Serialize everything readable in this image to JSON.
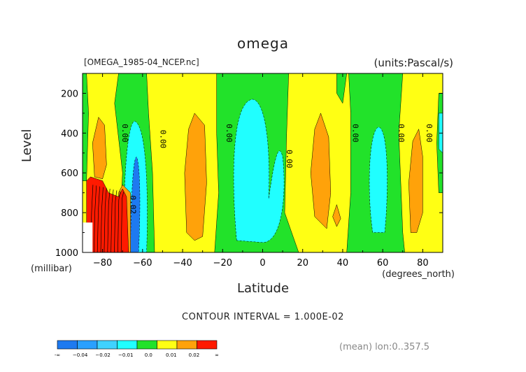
{
  "chart_data": {
    "type": "heatmap",
    "title": "omega",
    "source_file": "[OMEGA_1985-04_NCEP.nc]",
    "units": "(units:Pascal/s)",
    "xlabel": "Latitude",
    "x_unit": "(degrees_north)",
    "ylabel": "Level",
    "y_unit": "(millibar)",
    "xlim": [
      -90,
      90
    ],
    "ylim": [
      1000,
      100
    ],
    "x_ticks": [
      -80,
      -60,
      -40,
      -20,
      0,
      20,
      40,
      60,
      80
    ],
    "x_tick_labels": [
      "−80",
      "−60",
      "−40",
      "−20",
      "0",
      "20",
      "40",
      "60",
      "80"
    ],
    "y_ticks": [
      200,
      400,
      600,
      800,
      1000
    ],
    "y_tick_labels": [
      "200",
      "400",
      "600",
      "800",
      "1000"
    ],
    "contour_interval_text": "CONTOUR INTERVAL = 1.000E-02",
    "contour_interval": 0.01,
    "zero_contour_labels": [
      "0.00",
      "0.00",
      "0.00",
      "0.00",
      "0.00",
      "0.00",
      "0.00"
    ],
    "contour_label_near_minus66": "0.02",
    "color_scale": {
      "colors": [
        "#1e7af0",
        "#2aa0ff",
        "#3fd2ff",
        "#20ffff",
        "#22e22a",
        "#ffff14",
        "#ffa20a",
        "#ff1a00"
      ],
      "boundaries_labels": [
        "-∞",
        "−0.04",
        "−0.02",
        "−0.01",
        "0.0",
        "0.01",
        "0.02",
        "∞"
      ]
    },
    "regions": [
      {
        "type": "band",
        "value_range": [
          0.0,
          0.01
        ],
        "lat": [
          -88,
          -74
        ],
        "color": "yellow"
      },
      {
        "type": "band",
        "value_range": [
          -0.01,
          0.0
        ],
        "lat": [
          -72,
          -58
        ],
        "color": "green"
      },
      {
        "type": "band",
        "value_range": [
          0.0,
          0.01
        ],
        "lat": [
          -58,
          -24
        ],
        "color": "yellow"
      },
      {
        "type": "blob",
        "value_range": [
          0.01,
          0.02
        ],
        "lat": [
          -38,
          -28
        ],
        "level": [
          300,
          920
        ],
        "color": "orange"
      },
      {
        "type": "band",
        "value_range": [
          -0.01,
          0.0
        ],
        "lat": [
          -24,
          12
        ],
        "color": "green"
      },
      {
        "type": "blob",
        "value_range": [
          -0.02,
          -0.01
        ],
        "lat": [
          -14,
          12
        ],
        "level": [
          220,
          940
        ],
        "color": "cyan"
      },
      {
        "type": "band",
        "value_range": [
          0.0,
          0.01
        ],
        "lat": [
          12,
          42
        ],
        "color": "yellow"
      },
      {
        "type": "blob",
        "value_range": [
          0.01,
          0.02
        ],
        "lat": [
          26,
          34
        ],
        "level": [
          300,
          880
        ],
        "color": "orange"
      },
      {
        "type": "band",
        "value_range": [
          -0.01,
          0.0
        ],
        "lat": [
          42,
          70
        ],
        "color": "green"
      },
      {
        "type": "blob",
        "value_range": [
          -0.02,
          -0.01
        ],
        "lat": [
          54,
          64
        ],
        "level": [
          360,
          900
        ],
        "color": "cyan"
      },
      {
        "type": "band",
        "value_range": [
          0.0,
          0.01
        ],
        "lat": [
          70,
          88
        ],
        "color": "yellow"
      },
      {
        "type": "blob",
        "value_range": [
          0.01,
          0.02
        ],
        "lat": [
          -84,
          -78
        ],
        "level": [
          320,
          620
        ],
        "color": "orange"
      },
      {
        "type": "blob",
        "value_range": [
          0.02,
          0.05
        ],
        "lat": [
          -88,
          -74
        ],
        "level": [
          620,
          1000
        ],
        "color": "red"
      },
      {
        "type": "blob",
        "value_range": [
          -0.04,
          -0.02
        ],
        "lat": [
          -66,
          -62
        ],
        "level": [
          520,
          1000
        ],
        "color": "blue"
      }
    ]
  },
  "footer": {
    "meta": "(mean) lon:0..357.5"
  }
}
